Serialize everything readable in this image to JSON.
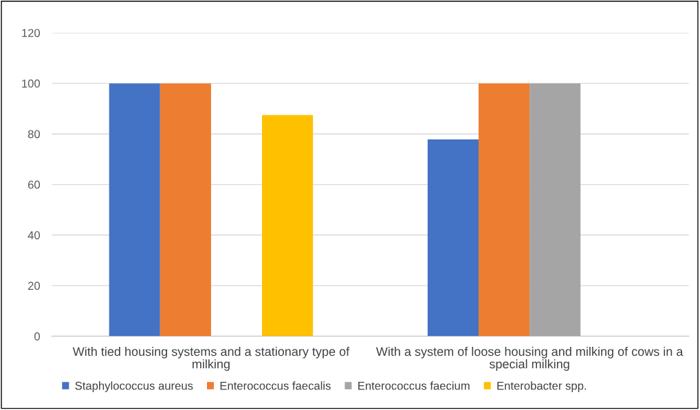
{
  "chart_data": {
    "type": "bar",
    "categories": [
      "With tied housing systems and a stationary type of milking",
      "With a system of loose housing and milking of cows in a special milking"
    ],
    "series": [
      {
        "name": "Staphylococcus aureus",
        "color": "#4472c4",
        "values": [
          100,
          77.8
        ]
      },
      {
        "name": "Enterococcus faecalis",
        "color": "#ed7d31",
        "values": [
          100,
          100
        ]
      },
      {
        "name": "Enterococcus faecium",
        "color": "#a5a5a5",
        "values": [
          0,
          100
        ]
      },
      {
        "name": "Enterobacter spp.",
        "color": "#ffc000",
        "values": [
          87.5,
          0
        ]
      }
    ],
    "ylim": [
      0,
      120
    ],
    "yticks": [
      0,
      20,
      40,
      60,
      80,
      100,
      120
    ],
    "grid": "y",
    "legend": "bottom"
  }
}
